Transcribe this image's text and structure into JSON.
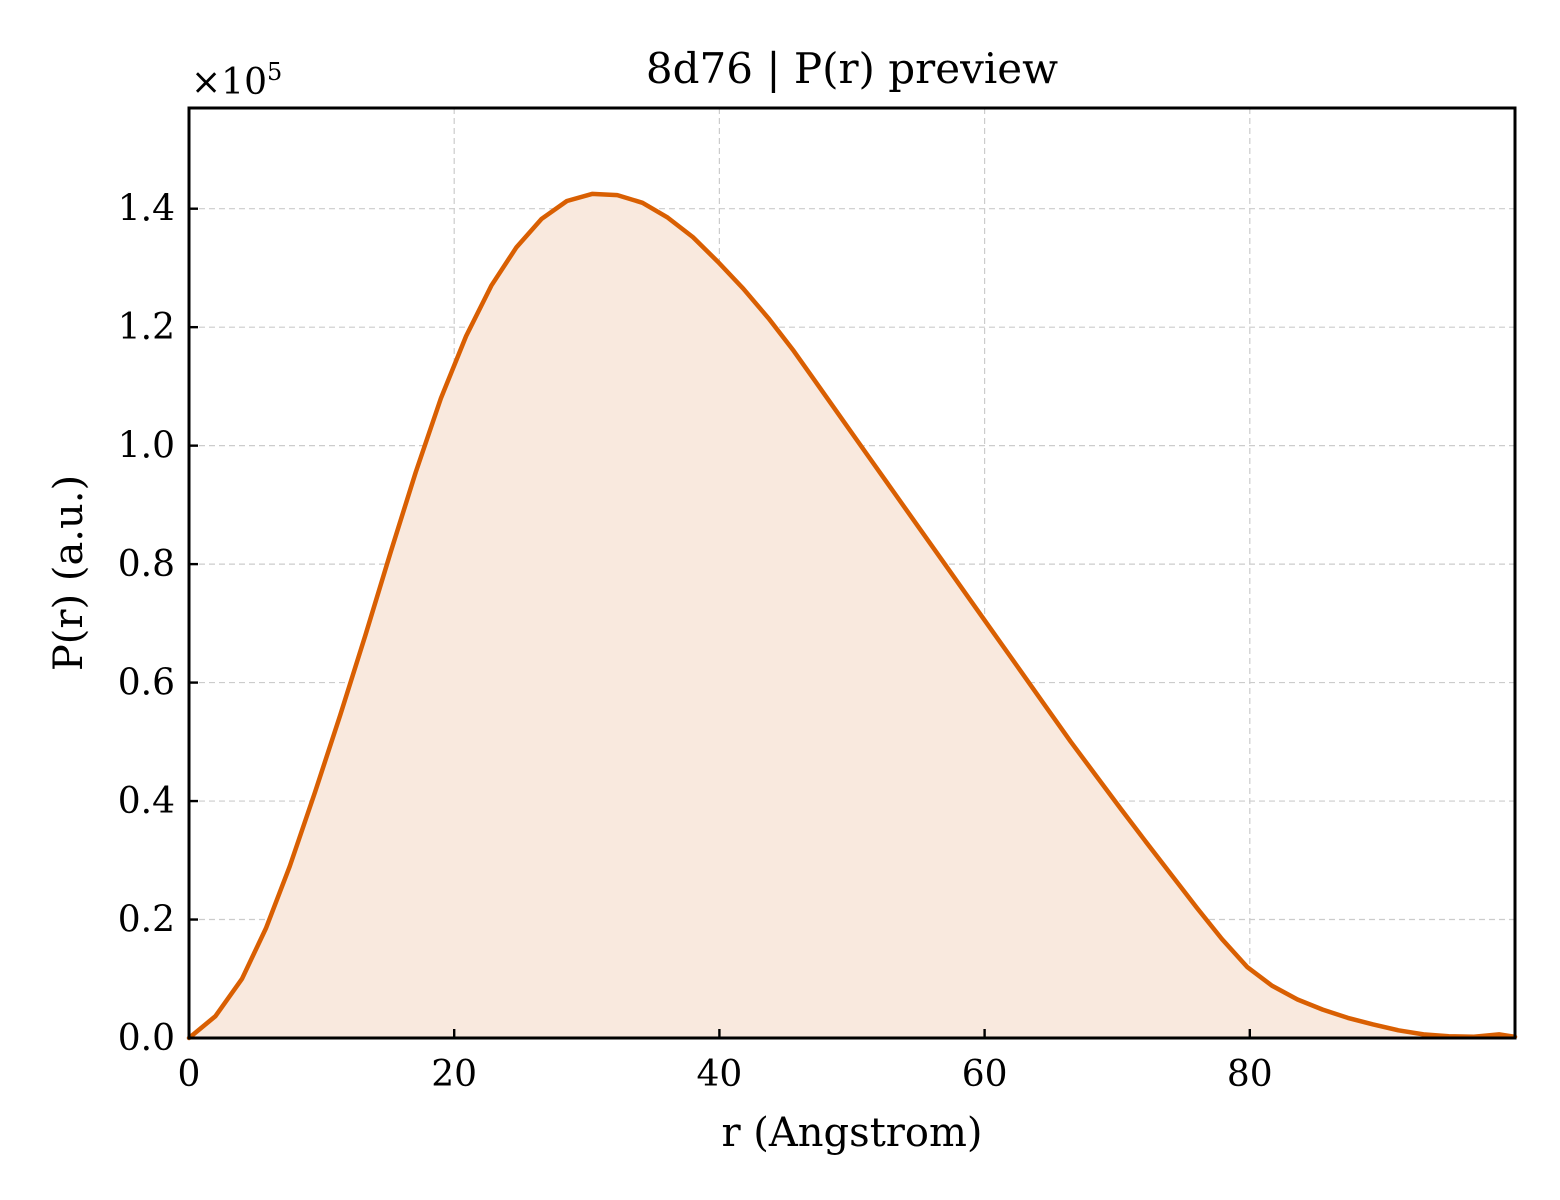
{
  "chart_data": {
    "type": "area",
    "title": "8d76 | P(r) preview",
    "xlabel": "r (Angstrom)",
    "ylabel": "P(r) (a.u.)",
    "y_multiplier_label": "×10",
    "y_multiplier_exponent": "5",
    "xlim": [
      0,
      100
    ],
    "ylim": [
      0,
      1.57
    ],
    "y_scale_factor": 100000,
    "xticks": [
      0,
      20,
      40,
      60,
      80
    ],
    "xtick_labels": [
      "0",
      "20",
      "40",
      "60",
      "80"
    ],
    "yticks": [
      0.0,
      0.2,
      0.4,
      0.6,
      0.8,
      1.0,
      1.2,
      1.4
    ],
    "ytick_labels": [
      "0.0",
      "0.2",
      "0.4",
      "0.6",
      "0.8",
      "1.0",
      "1.2",
      "1.4"
    ],
    "grid": true,
    "line_color": "#d95f02",
    "fill_color": "#f9e9de",
    "series": [
      {
        "x": [
          0,
          2,
          4,
          5.8,
          7.6,
          9.5,
          11.4,
          13.3,
          15.2,
          17.1,
          19.0,
          20.9,
          22.8,
          24.7,
          26.6,
          28.5,
          30.4,
          32.3,
          34.2,
          36.1,
          38.0,
          39.9,
          41.8,
          43.7,
          45.6,
          47.5,
          49.4,
          51.3,
          53.2,
          55.1,
          57.0,
          58.9,
          60.8,
          62.7,
          64.6,
          66.5,
          68.4,
          70.3,
          72.2,
          74.1,
          76.0,
          77.9,
          79.8,
          81.7,
          83.6,
          85.5,
          87.4,
          89.3,
          91.2,
          93.1,
          95.0,
          96.9,
          98.8,
          100
        ],
        "values": [
          0.0,
          0.037,
          0.1,
          0.185,
          0.29,
          0.415,
          0.545,
          0.68,
          0.82,
          0.955,
          1.08,
          1.185,
          1.27,
          1.335,
          1.383,
          1.413,
          1.425,
          1.423,
          1.41,
          1.385,
          1.352,
          1.31,
          1.265,
          1.215,
          1.16,
          1.1,
          1.04,
          0.98,
          0.92,
          0.86,
          0.8,
          0.74,
          0.68,
          0.62,
          0.56,
          0.5,
          0.443,
          0.386,
          0.33,
          0.275,
          0.22,
          0.167,
          0.12,
          0.088,
          0.065,
          0.048,
          0.034,
          0.023,
          0.013,
          0.006,
          0.003,
          0.002,
          0.006,
          0.002
        ]
      }
    ]
  }
}
